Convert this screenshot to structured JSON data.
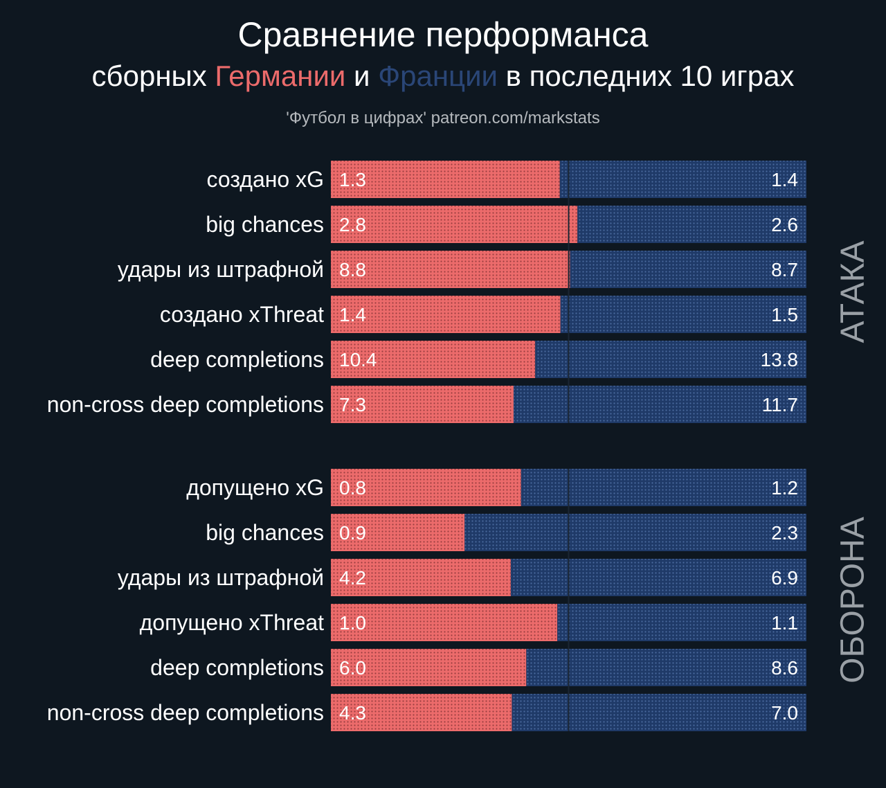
{
  "header": {
    "title": "Сравнение перформанса",
    "subtitle_prefix": "сборных ",
    "team_a": "Германии",
    "subtitle_mid": " и ",
    "team_b": "Франции",
    "subtitle_suffix": " в последних 10 играх",
    "credit": "'Футбол в цифрах' patreon.com/markstats"
  },
  "colors": {
    "team_a": "#ec6b6b",
    "team_b": "#1f3a68",
    "background": "#0e1720",
    "group_label": "#9aa0a6"
  },
  "chart_data": {
    "type": "bar",
    "subtype": "stacked-horizontal-share",
    "series": [
      {
        "name": "Германии",
        "color": "#ec6b6b"
      },
      {
        "name": "Франции",
        "color": "#1f3a68"
      }
    ],
    "groups": [
      {
        "label": "АТАКА",
        "rows": [
          {
            "label": "создано xG",
            "a": "1.3",
            "b": "1.4"
          },
          {
            "label": "big chances",
            "a": "2.8",
            "b": "2.6"
          },
          {
            "label": "удары из штрафной",
            "a": "8.8",
            "b": "8.7"
          },
          {
            "label": "создано xThreat",
            "a": "1.4",
            "b": "1.5"
          },
          {
            "label": "deep completions",
            "a": "10.4",
            "b": "13.8"
          },
          {
            "label": "non-cross deep completions",
            "a": "7.3",
            "b": "11.7"
          }
        ]
      },
      {
        "label": "ОБОРОНА",
        "rows": [
          {
            "label": "допущено xG",
            "a": "0.8",
            "b": "1.2"
          },
          {
            "label": "big chances",
            "a": "0.9",
            "b": "2.3"
          },
          {
            "label": "удары из штрафной",
            "a": "4.2",
            "b": "6.9"
          },
          {
            "label": "допущено xThreat",
            "a": "1.0",
            "b": "1.1"
          },
          {
            "label": "deep completions",
            "a": "6.0",
            "b": "8.6"
          },
          {
            "label": "non-cross deep completions",
            "a": "4.3",
            "b": "7.0"
          }
        ]
      }
    ],
    "midline": 0.5,
    "grid": false
  }
}
